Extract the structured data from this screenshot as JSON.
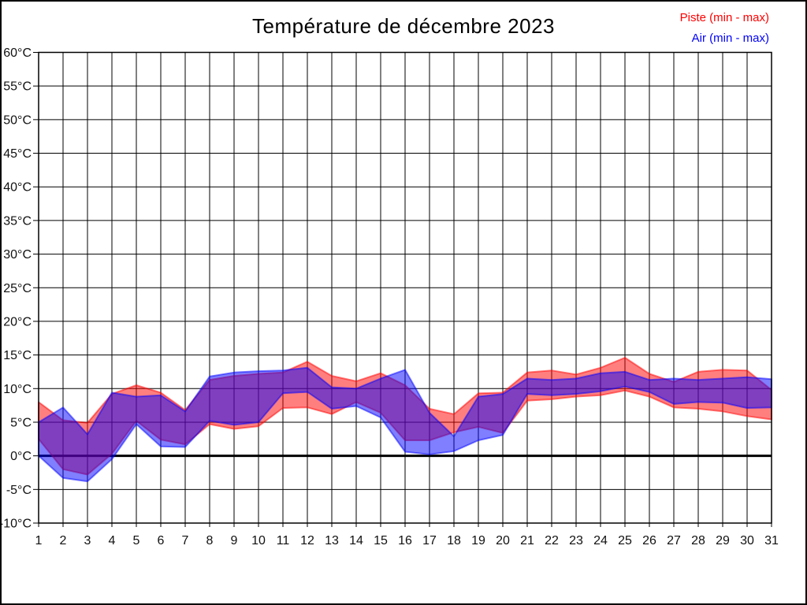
{
  "page": {
    "title": "Température de décembre 2023"
  },
  "legend": {
    "piste_label": "Piste (min - max)",
    "air_label": "Air (min - max)",
    "piste_color": "#ff0000",
    "air_color": "#0000ff"
  },
  "chart_data": {
    "type": "area",
    "title": "Température de décembre 2023",
    "xlabel": "",
    "ylabel": "",
    "unit": "°C",
    "ylim": [
      -10,
      60
    ],
    "ytick_step": 5,
    "grid": true,
    "zero_line": true,
    "legend_position": "top-right",
    "y_tick_labels": [
      "60°C",
      "55°C",
      "50°C",
      "45°C",
      "40°C",
      "35°C",
      "30°C",
      "25°C",
      "20°C",
      "15°C",
      "10°C",
      "5°C",
      "0°C",
      "-5°C",
      "-10°C"
    ],
    "x": [
      1,
      2,
      3,
      4,
      5,
      6,
      7,
      8,
      9,
      10,
      11,
      12,
      13,
      14,
      15,
      16,
      17,
      18,
      19,
      20,
      21,
      22,
      23,
      24,
      25,
      26,
      27,
      28,
      29,
      30,
      31
    ],
    "series": [
      {
        "name": "Piste (min - max)",
        "color": "#ff0000",
        "opacity": 0.5,
        "min": [
          2.5,
          -2.0,
          -2.8,
          0.3,
          5.2,
          2.4,
          1.7,
          4.7,
          4.0,
          4.4,
          7.1,
          7.2,
          6.2,
          8.0,
          6.4,
          2.3,
          2.3,
          3.5,
          4.3,
          3.4,
          8.2,
          8.4,
          8.8,
          9.0,
          9.7,
          8.8,
          7.2,
          7.0,
          6.6,
          5.9,
          5.4
        ],
        "max": [
          8.0,
          5.3,
          4.9,
          9.2,
          10.5,
          9.4,
          6.8,
          11.3,
          11.9,
          12.2,
          12.4,
          14.0,
          11.9,
          11.1,
          12.3,
          10.5,
          7.0,
          6.2,
          9.3,
          9.4,
          12.4,
          12.7,
          12.1,
          13.1,
          14.6,
          12.2,
          11.0,
          12.5,
          12.8,
          12.7,
          9.8
        ]
      },
      {
        "name": "Air (min - max)",
        "color": "#0000ff",
        "opacity": 0.5,
        "min": [
          0.0,
          -3.3,
          -3.8,
          -0.5,
          4.7,
          1.4,
          1.3,
          5.2,
          4.6,
          5.0,
          9.3,
          9.5,
          7.0,
          7.4,
          5.7,
          0.6,
          0.2,
          0.7,
          2.3,
          3.1,
          9.2,
          9.0,
          9.2,
          9.6,
          10.3,
          9.5,
          7.7,
          8.0,
          7.9,
          7.1,
          7.2
        ],
        "max": [
          5.0,
          7.2,
          3.2,
          9.4,
          8.8,
          9.0,
          6.6,
          11.8,
          12.4,
          12.6,
          12.7,
          13.1,
          10.2,
          10.0,
          11.5,
          12.8,
          6.4,
          2.9,
          8.8,
          9.2,
          11.5,
          11.3,
          11.5,
          12.3,
          12.5,
          11.3,
          11.5,
          11.3,
          11.5,
          11.7,
          11.4
        ]
      }
    ]
  }
}
